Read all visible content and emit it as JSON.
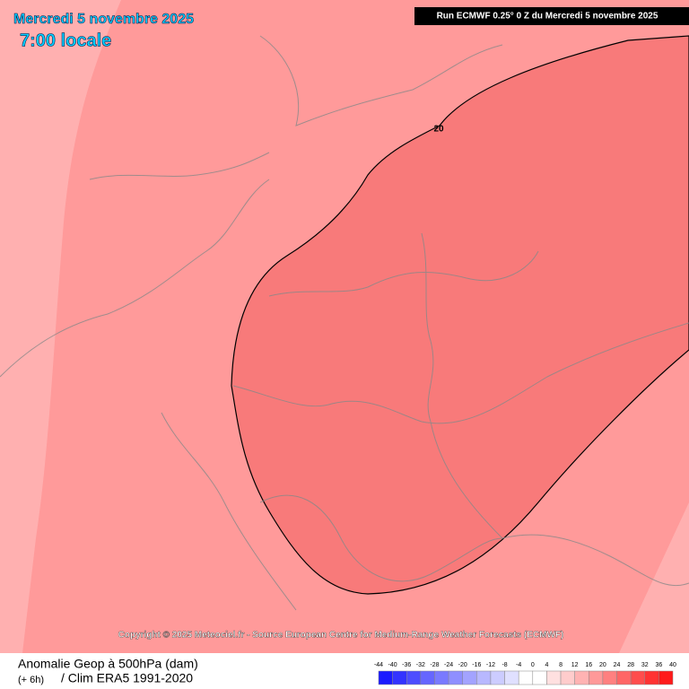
{
  "header": {
    "date": "Mercredi 5 novembre 2025",
    "time": "7:00 locale",
    "run": "Run ECMWF 0.25° 0 Z du Mercredi 5 novembre 2025"
  },
  "map": {
    "contour_label": "20",
    "copyright": "Copyright © 2025 Meteociel.fr - Source European Centre for Medium-Range Weather Forecasts (ECMWF)"
  },
  "footer": {
    "title": "Anomalie Geop à 500hPa (dam)",
    "step": "(+ 6h)",
    "clim": "/ Clim ERA5 1991-2020"
  },
  "scale": {
    "ticks": [
      -44,
      -40,
      -36,
      -32,
      -28,
      -24,
      -20,
      -16,
      -12,
      -8,
      -4,
      0,
      4,
      8,
      12,
      16,
      20,
      24,
      28,
      32,
      36,
      40
    ],
    "colors": [
      "#1a1aff",
      "#3333ff",
      "#4d4dff",
      "#6666ff",
      "#7a7aff",
      "#8f8fff",
      "#a3a3ff",
      "#b8b8ff",
      "#ccccff",
      "#e0e0ff",
      "#ffffff",
      "#ffffff",
      "#ffe0e0",
      "#ffcccc",
      "#ffb3b3",
      "#ff9999",
      "#ff8080",
      "#ff6666",
      "#ff4d4d",
      "#ff3333",
      "#ff1a1a"
    ]
  }
}
